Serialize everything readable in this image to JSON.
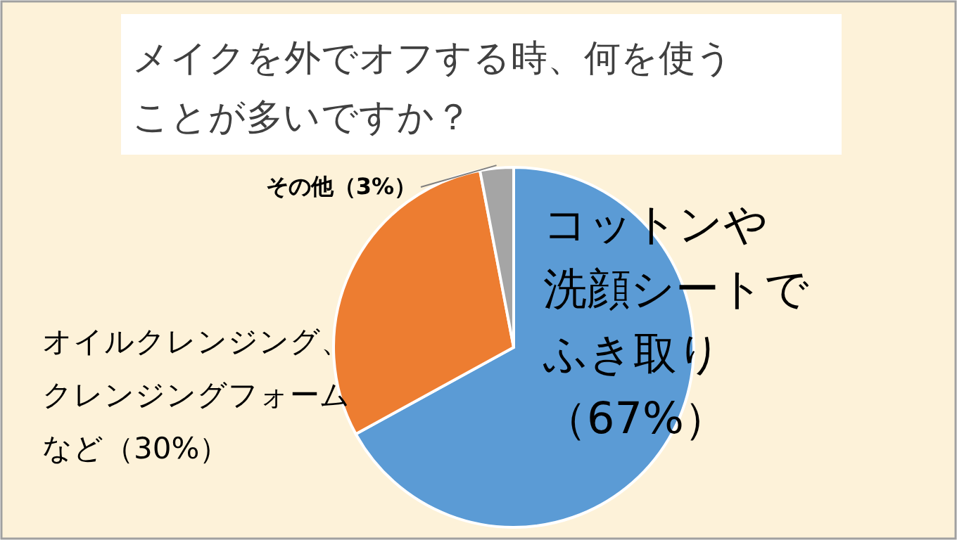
{
  "chart_data": {
    "type": "pie",
    "title": "メイクを外でオフする時、何を使うことが多いですか？",
    "categories": [
      "コットンや洗顔シートでふき取り（67%）",
      "オイルクレンジング、クレンジングフォームなど（30%）",
      "その他（3%）"
    ],
    "values": [
      67,
      30,
      3
    ],
    "colors": [
      "#5b9bd5",
      "#ed7d31",
      "#a5a5a5"
    ]
  }
}
